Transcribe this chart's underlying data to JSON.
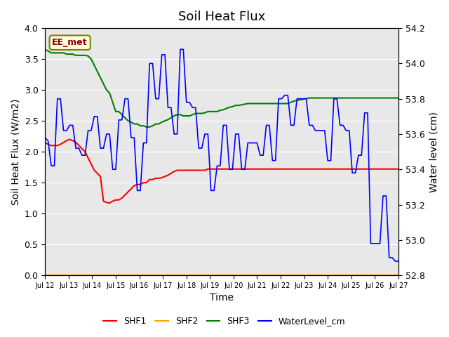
{
  "title": "Soil Heat Flux",
  "xlabel": "Time",
  "ylabel_left": "Soil Heat Flux (W/m2)",
  "ylabel_right": "Water level (cm)",
  "annotation": "EE_met",
  "ylim_left": [
    0.0,
    4.0
  ],
  "ylim_right": [
    52.8,
    54.2
  ],
  "bg_color": "#e8e8e8",
  "fig_color": "#ffffff",
  "xtick_labels": [
    "Jul 12",
    "Jul 13",
    "Jul 14",
    "Jul 15",
    "Jul 16",
    "Jul 17",
    "Jul 18",
    "Jul 19",
    "Jul 20",
    "Jul 21",
    "Jul 22",
    "Jul 23",
    "Jul 24",
    "Jul 25",
    "Jul 26",
    "Jul 27"
  ],
  "shf1": [
    2.15,
    2.12,
    2.1,
    2.1,
    2.1,
    2.12,
    2.15,
    2.18,
    2.2,
    2.18,
    2.15,
    2.1,
    2.05,
    2.0,
    1.9,
    1.8,
    1.7,
    1.65,
    1.6,
    1.2,
    1.18,
    1.17,
    1.2,
    1.22,
    1.22,
    1.25,
    1.3,
    1.35,
    1.4,
    1.45,
    1.47,
    1.47,
    1.5,
    1.5,
    1.55,
    1.55,
    1.57,
    1.57,
    1.58,
    1.6,
    1.62,
    1.65,
    1.68,
    1.7,
    1.7,
    1.7,
    1.7,
    1.7,
    1.7,
    1.7,
    1.7,
    1.7,
    1.7,
    1.72,
    1.72,
    1.72,
    1.72,
    1.72,
    1.72,
    1.72,
    1.72,
    1.72,
    1.72,
    1.72,
    1.72,
    1.72,
    1.72,
    1.72,
    1.72,
    1.72,
    1.72,
    1.72,
    1.72,
    1.72,
    1.72,
    1.72,
    1.72,
    1.72,
    1.72,
    1.72,
    1.72,
    1.72,
    1.72,
    1.72,
    1.72,
    1.72,
    1.72,
    1.72,
    1.72,
    1.72,
    1.72,
    1.72,
    1.72,
    1.72,
    1.72,
    1.72,
    1.72,
    1.72,
    1.72,
    1.72,
    1.72,
    1.72,
    1.72,
    1.72,
    1.72,
    1.72,
    1.72,
    1.72,
    1.72,
    1.72,
    1.72,
    1.72,
    1.72,
    1.72,
    1.72,
    1.72
  ],
  "shf2_val": 0.0,
  "shf3": [
    3.65,
    3.63,
    3.6,
    3.6,
    3.6,
    3.6,
    3.6,
    3.58,
    3.58,
    3.58,
    3.56,
    3.56,
    3.56,
    3.56,
    3.55,
    3.5,
    3.4,
    3.3,
    3.2,
    3.1,
    3.0,
    2.95,
    2.8,
    2.65,
    2.65,
    2.6,
    2.55,
    2.5,
    2.48,
    2.45,
    2.45,
    2.42,
    2.42,
    2.4,
    2.4,
    2.42,
    2.45,
    2.45,
    2.48,
    2.5,
    2.52,
    2.55,
    2.58,
    2.6,
    2.6,
    2.58,
    2.58,
    2.58,
    2.6,
    2.62,
    2.62,
    2.62,
    2.63,
    2.65,
    2.65,
    2.65,
    2.65,
    2.67,
    2.68,
    2.7,
    2.72,
    2.73,
    2.75,
    2.75,
    2.76,
    2.77,
    2.78,
    2.78,
    2.78,
    2.78,
    2.78,
    2.78,
    2.78,
    2.78,
    2.78,
    2.78,
    2.78,
    2.78,
    2.78,
    2.78,
    2.8,
    2.82,
    2.83,
    2.84,
    2.85,
    2.86,
    2.87,
    2.87,
    2.87,
    2.87,
    2.87,
    2.87,
    2.87,
    2.87,
    2.87,
    2.87,
    2.87,
    2.87,
    2.87,
    2.87,
    2.87,
    2.87,
    2.87,
    2.87,
    2.87,
    2.87,
    2.87,
    2.87,
    2.87,
    2.87,
    2.87,
    2.87,
    2.87,
    2.87,
    2.87,
    2.87
  ],
  "water": [
    53.58,
    53.56,
    53.42,
    53.42,
    53.8,
    53.8,
    53.62,
    53.62,
    53.65,
    53.65,
    53.52,
    53.52,
    53.48,
    53.48,
    53.62,
    53.62,
    53.7,
    53.7,
    53.52,
    53.52,
    53.6,
    53.6,
    53.4,
    53.4,
    53.68,
    53.68,
    53.8,
    53.8,
    53.58,
    53.58,
    53.28,
    53.28,
    53.55,
    53.55,
    54.0,
    54.0,
    53.8,
    53.8,
    54.05,
    54.05,
    53.75,
    53.75,
    53.6,
    53.6,
    54.08,
    54.08,
    53.78,
    53.78,
    53.75,
    53.75,
    53.52,
    53.52,
    53.6,
    53.6,
    53.28,
    53.28,
    53.42,
    53.42,
    53.65,
    53.65,
    53.4,
    53.4,
    53.6,
    53.6,
    53.4,
    53.4,
    53.55,
    53.55,
    53.55,
    53.55,
    53.48,
    53.48,
    53.65,
    53.65,
    53.45,
    53.45,
    53.8,
    53.8,
    53.82,
    53.82,
    53.65,
    53.65,
    53.8,
    53.8,
    53.8,
    53.8,
    53.65,
    53.65,
    53.62,
    53.62,
    53.62,
    53.62,
    53.45,
    53.45,
    53.8,
    53.8,
    53.65,
    53.65,
    53.62,
    53.62,
    53.38,
    53.38,
    53.48,
    53.48,
    53.72,
    53.72,
    52.98,
    52.98,
    52.98,
    52.98,
    53.25,
    53.25,
    52.9,
    52.9,
    52.88,
    52.88
  ]
}
